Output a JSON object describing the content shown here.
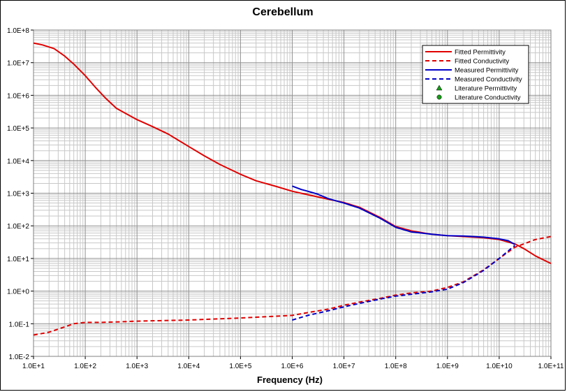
{
  "chart_data": {
    "type": "line",
    "title": "Cerebellum",
    "xlabel": "Frequency (Hz)",
    "ylabel": "",
    "x_scale": "log",
    "y_scale": "log",
    "xlim": [
      10,
      100000000000
    ],
    "ylim": [
      0.01,
      100000000
    ],
    "grid": true,
    "legend_position": "top-right",
    "x_tick_labels": [
      "1.0E+1",
      "1.0E+2",
      "1.0E+3",
      "1.0E+4",
      "1.0E+5",
      "1.0E+6",
      "1.0E+7",
      "1.0E+8",
      "1.0E+9",
      "1.0E+10",
      "1.0E+11"
    ],
    "y_tick_labels": [
      "1.0E-2",
      "1.0E-1",
      "1.0E+0",
      "1.0E+1",
      "1.0E+2",
      "1.0E+3",
      "1.0E+4",
      "1.0E+5",
      "1.0E+6",
      "1.0E+7",
      "1.0E+8"
    ],
    "series": [
      {
        "name": "Fitted Permittivity",
        "color": "#e00000",
        "style": "solid",
        "x": [
          10,
          15,
          25,
          40,
          60,
          100,
          160,
          250,
          400,
          600,
          1000,
          2000,
          4000,
          10000,
          20000,
          40000,
          100000,
          200000,
          500000,
          1000000,
          2000000,
          5000000,
          10000000,
          20000000,
          50000000,
          100000000,
          200000000,
          500000000,
          1000000000,
          2000000000,
          5000000000,
          10000000000,
          20000000000,
          30000000000,
          50000000000,
          100000000000
        ],
        "y": [
          40000000,
          35000000,
          27000000,
          16000000,
          9000000,
          4000000,
          1700000,
          800000,
          400000,
          280000,
          180000,
          110000,
          65000,
          27000,
          14000,
          7600,
          3800,
          2400,
          1600,
          1150,
          900,
          650,
          520,
          370,
          180,
          95,
          70,
          55,
          50,
          47,
          43,
          38,
          28,
          20,
          12,
          7
        ]
      },
      {
        "name": "Fitted Conductivity",
        "color": "#e00000",
        "style": "dashed",
        "x": [
          10,
          20,
          40,
          60,
          100,
          200,
          500,
          1000,
          10000,
          100000,
          1000000,
          2000000,
          5000000,
          10000000,
          20000000,
          50000000,
          100000000,
          200000000,
          500000000,
          1000000000,
          2000000000,
          5000000000,
          10000000000,
          20000000000,
          50000000000,
          100000000000
        ],
        "y": [
          0.045,
          0.055,
          0.08,
          0.1,
          0.11,
          0.11,
          0.115,
          0.12,
          0.13,
          0.15,
          0.18,
          0.22,
          0.28,
          0.37,
          0.46,
          0.6,
          0.75,
          0.88,
          1.0,
          1.3,
          1.9,
          4.5,
          10,
          22,
          38,
          47
        ]
      },
      {
        "name": "Measured Permittivity",
        "color": "#0000c8",
        "style": "solid",
        "x": [
          1000000,
          1500000,
          2000000,
          3000000,
          5000000,
          10000000,
          20000000,
          50000000,
          100000000,
          200000000,
          500000000,
          1000000000,
          2000000000,
          5000000000,
          10000000000,
          15000000000,
          20000000000
        ],
        "y": [
          1650,
          1300,
          1150,
          950,
          680,
          500,
          350,
          170,
          90,
          65,
          55,
          50,
          49,
          45,
          40,
          35,
          27
        ]
      },
      {
        "name": "Measured Conductivity",
        "color": "#0000c8",
        "style": "dashed",
        "x": [
          1000000,
          2000000,
          5000000,
          10000000,
          20000000,
          50000000,
          100000000,
          200000000,
          500000000,
          1000000000,
          2000000000,
          5000000000,
          10000000000,
          15000000000,
          20000000000
        ],
        "y": [
          0.13,
          0.18,
          0.25,
          0.33,
          0.42,
          0.57,
          0.7,
          0.8,
          0.95,
          1.15,
          1.8,
          4.3,
          10,
          17,
          25
        ]
      },
      {
        "name": "Literature Permittivity",
        "color": "#1a9a1a",
        "marker": "triangle",
        "x": [],
        "y": []
      },
      {
        "name": "Literature Conductivity",
        "color": "#1a9a1a",
        "marker": "circle",
        "x": [],
        "y": []
      }
    ]
  }
}
